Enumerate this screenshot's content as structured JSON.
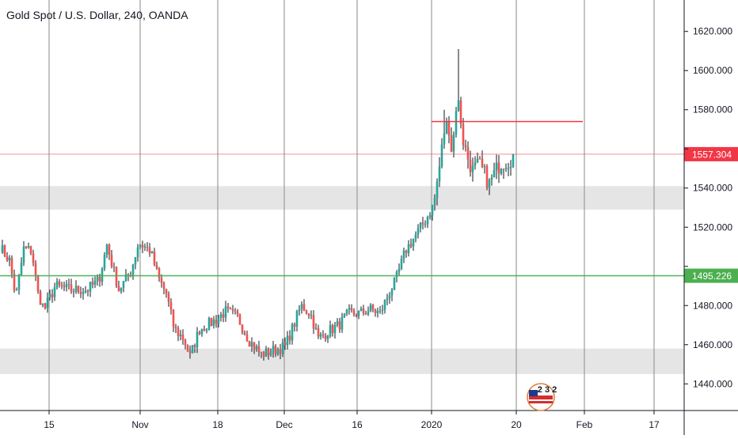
{
  "chart_data": {
    "type": "candlestick",
    "title": "Gold Spot / U.S. Dollar, 240, OANDA",
    "ylim": [
      1428,
      1632
    ],
    "y_ticks": [
      1440,
      1460,
      1480,
      1500,
      1520,
      1540,
      1560,
      1580,
      1600,
      1620
    ],
    "y_tick_labels": [
      "1440.000",
      "1460.000",
      "1480.000",
      "1500.000",
      "1520.000",
      "1540.000",
      "1560.000",
      "1580.000",
      "1600.000",
      "1620.000"
    ],
    "x_ticks": [
      {
        "label": "15",
        "bar": 62
      },
      {
        "label": "Nov",
        "bar": 177
      },
      {
        "label": "18",
        "bar": 275
      },
      {
        "label": "Dec",
        "bar": 359
      },
      {
        "label": "16",
        "bar": 451
      },
      {
        "label": "2020",
        "bar": 545
      },
      {
        "label": "20",
        "bar": 652
      },
      {
        "label": "Feb",
        "bar": 738
      },
      {
        "label": "17",
        "bar": 826
      }
    ],
    "price_lines": [
      {
        "price": 1557.304,
        "label": "1557.304",
        "color": "#f23645",
        "style": "thin"
      },
      {
        "price": 1495.226,
        "label": "1495.226",
        "color": "#4caf50",
        "style": "thick"
      }
    ],
    "horizontal_segment": {
      "price": 1574,
      "start_bar": 545,
      "end_bar": 736,
      "color": "#f23645"
    },
    "zones": [
      {
        "low": 1529,
        "high": 1541,
        "color": "#e0e0e0"
      },
      {
        "low": 1445,
        "high": 1458,
        "color": "#e0e0e0"
      }
    ],
    "candle_colors": {
      "up": "#26a69a",
      "down": "#ef5350",
      "wick": "#131722"
    },
    "anchors": [
      [
        0,
        1510
      ],
      [
        12,
        1503
      ],
      [
        20,
        1484
      ],
      [
        30,
        1509
      ],
      [
        40,
        1508
      ],
      [
        48,
        1486
      ],
      [
        56,
        1478
      ],
      [
        70,
        1490
      ],
      [
        90,
        1488
      ],
      [
        110,
        1488
      ],
      [
        125,
        1493
      ],
      [
        135,
        1511
      ],
      [
        150,
        1488
      ],
      [
        165,
        1497
      ],
      [
        175,
        1512
      ],
      [
        190,
        1508
      ],
      [
        200,
        1494
      ],
      [
        210,
        1486
      ],
      [
        220,
        1468
      ],
      [
        232,
        1463
      ],
      [
        240,
        1454
      ],
      [
        252,
        1468
      ],
      [
        270,
        1472
      ],
      [
        285,
        1477
      ],
      [
        300,
        1474
      ],
      [
        315,
        1462
      ],
      [
        330,
        1455
      ],
      [
        345,
        1457
      ],
      [
        360,
        1459
      ],
      [
        370,
        1469
      ],
      [
        380,
        1480
      ],
      [
        392,
        1476
      ],
      [
        402,
        1463
      ],
      [
        415,
        1467
      ],
      [
        428,
        1470
      ],
      [
        440,
        1476
      ],
      [
        455,
        1476
      ],
      [
        468,
        1478
      ],
      [
        480,
        1476
      ],
      [
        492,
        1487
      ],
      [
        500,
        1493
      ],
      [
        512,
        1508
      ],
      [
        525,
        1516
      ],
      [
        538,
        1524
      ],
      [
        548,
        1532
      ],
      [
        555,
        1551
      ],
      [
        562,
        1572
      ],
      [
        567,
        1571
      ],
      [
        571,
        1557
      ],
      [
        576,
        1582
      ],
      [
        580,
        1583
      ],
      [
        584,
        1566
      ],
      [
        590,
        1556
      ],
      [
        597,
        1549
      ],
      [
        605,
        1552
      ],
      [
        612,
        1547
      ],
      [
        618,
        1542
      ],
      [
        625,
        1548
      ],
      [
        632,
        1553
      ],
      [
        642,
        1554
      ],
      [
        650,
        1557.304
      ]
    ],
    "spikes": [
      {
        "bar": 578,
        "high": 1611
      },
      {
        "bar": 560,
        "high": 1580
      },
      {
        "bar": 617,
        "low": 1537
      }
    ]
  },
  "badge": {
    "number": "2 3 2"
  }
}
